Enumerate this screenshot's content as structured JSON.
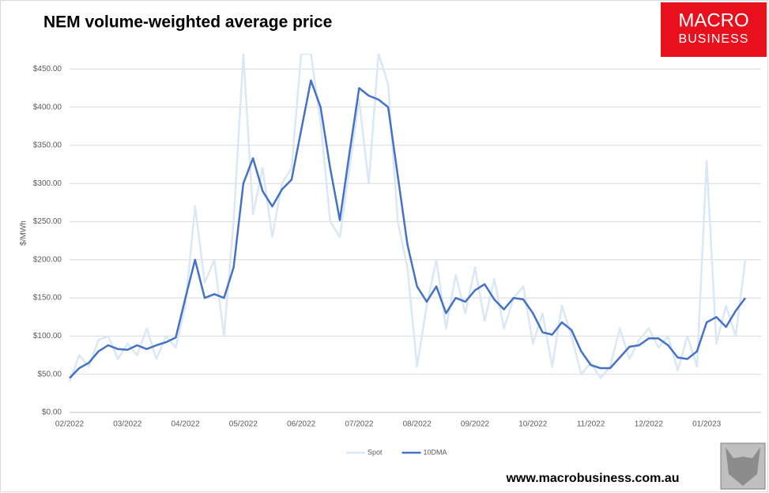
{
  "chart_data": {
    "type": "line",
    "title": "NEM volume-weighted average price",
    "y_label": "$/MWh",
    "logo": [
      "MACRO",
      "BUSINESS"
    ],
    "footer": "www.macrobusiness.com.au",
    "categories": [
      "02/2022",
      null,
      null,
      null,
      null,
      null,
      "03/2022",
      null,
      null,
      null,
      null,
      null,
      "04/2022",
      null,
      null,
      null,
      null,
      null,
      "05/2022",
      null,
      null,
      null,
      null,
      null,
      "06/2022",
      null,
      null,
      null,
      null,
      null,
      "07/2022",
      null,
      null,
      null,
      null,
      null,
      "08/2022",
      null,
      null,
      null,
      null,
      null,
      "09/2022",
      null,
      null,
      null,
      null,
      null,
      "10/2022",
      null,
      null,
      null,
      null,
      null,
      "11/2022",
      null,
      null,
      null,
      null,
      null,
      "12/2022",
      null,
      null,
      null,
      null,
      null,
      "01/2023",
      null,
      null,
      null,
      null
    ],
    "series": [
      {
        "name": "Spot",
        "color": "#dae7f5",
        "width": 2.5,
        "values": [
          40,
          75,
          60,
          95,
          100,
          70,
          90,
          75,
          110,
          70,
          100,
          85,
          140,
          270,
          170,
          200,
          100,
          250,
          470,
          260,
          320,
          230,
          300,
          320,
          470,
          470,
          380,
          250,
          230,
          320,
          410,
          300,
          470,
          430,
          250,
          190,
          60,
          140,
          200,
          110,
          180,
          130,
          190,
          120,
          175,
          110,
          150,
          165,
          90,
          130,
          60,
          140,
          100,
          50,
          65,
          45,
          60,
          110,
          70,
          95,
          110,
          85,
          100,
          55,
          100,
          60,
          330,
          90,
          140,
          100,
          200
        ]
      },
      {
        "name": "10DMA",
        "color": "#4472c4",
        "width": 2.5,
        "values": [
          45,
          58,
          65,
          80,
          88,
          83,
          82,
          88,
          83,
          88,
          92,
          98,
          150,
          200,
          150,
          155,
          150,
          190,
          300,
          333,
          290,
          270,
          292,
          305,
          370,
          435,
          400,
          320,
          252,
          340,
          425,
          415,
          410,
          400,
          310,
          220,
          165,
          145,
          165,
          130,
          150,
          145,
          160,
          168,
          148,
          135,
          150,
          148,
          130,
          105,
          102,
          118,
          108,
          80,
          62,
          58,
          58,
          72,
          86,
          88,
          97,
          97,
          88,
          72,
          70,
          80,
          118,
          125,
          112,
          133,
          150
        ]
      }
    ],
    "ylim": [
      0,
      470
    ],
    "yticks": [
      {
        "value": 0,
        "label": "$0.00"
      },
      {
        "value": 50,
        "label": "$50.00"
      },
      {
        "value": 100,
        "label": "$100.00"
      },
      {
        "value": 150,
        "label": "$150.00"
      },
      {
        "value": 200,
        "label": "$200.00"
      },
      {
        "value": 250,
        "label": "$250.00"
      },
      {
        "value": 300,
        "label": "$300.00"
      },
      {
        "value": 350,
        "label": "$350.00"
      },
      {
        "value": 400,
        "label": "$400.00"
      },
      {
        "value": 450,
        "label": "$450.00"
      }
    ],
    "grid": true
  }
}
